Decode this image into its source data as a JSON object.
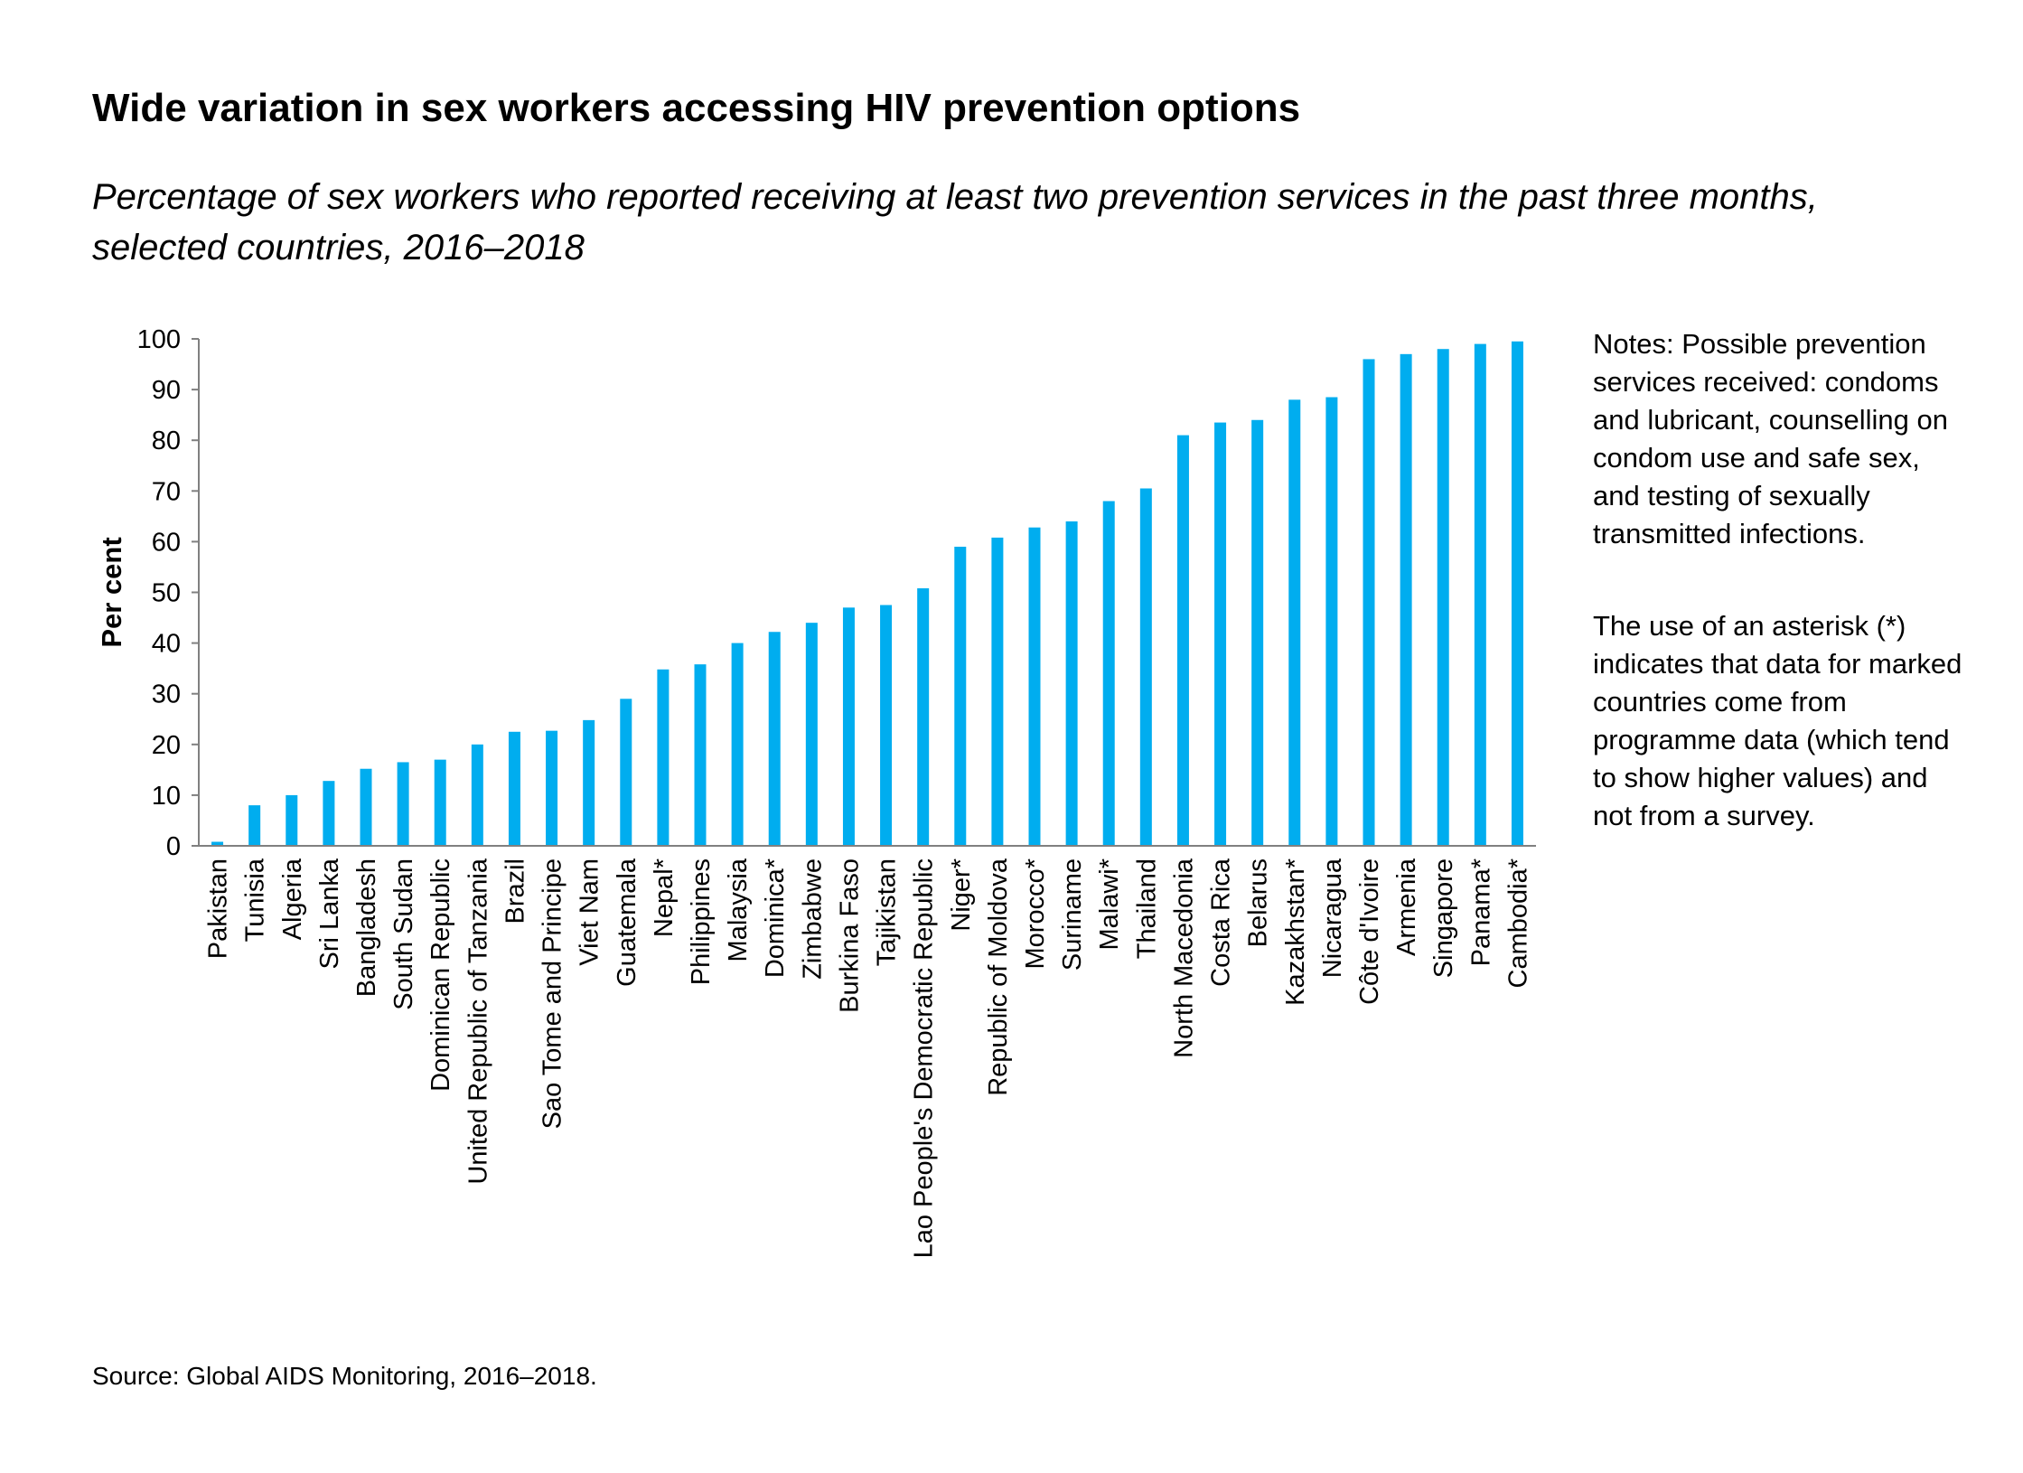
{
  "chart_data": {
    "type": "bar",
    "title": "Wide variation in sex workers accessing HIV prevention options",
    "subtitle": "Percentage of sex workers who reported receiving at least two prevention services in the past three months, selected countries, 2016–2018",
    "xlabel": "",
    "ylabel": "Per cent",
    "ylim": [
      0,
      100
    ],
    "yticks": [
      "0",
      "10",
      "20",
      "30",
      "40",
      "50",
      "60",
      "70",
      "80",
      "90",
      "100"
    ],
    "bar_color": "#00ADEF",
    "grid": false,
    "categories": [
      "Pakistan",
      "Tunisia",
      "Algeria",
      "Sri Lanka",
      "Bangladesh",
      "South Sudan",
      "Dominican Republic",
      "United Republic of Tanzania",
      "Brazil",
      "Sao Tome and Principe",
      "Viet Nam",
      "Guatemala",
      "Nepal*",
      "Philippines",
      "Malaysia",
      "Dominica*",
      "Zimbabwe",
      "Burkina Faso",
      "Tajikistan",
      "Lao People's Democratic Republic",
      "Niger*",
      "Republic of Moldova",
      "Morocco*",
      "Suriname",
      "Malawi*",
      "Thailand",
      "North Macedonia",
      "Costa Rica",
      "Belarus",
      "Kazakhstan*",
      "Nicaragua",
      "Côte d'Ivoire",
      "Armenia",
      "Singapore",
      "Panama*",
      "Cambodia*"
    ],
    "values": [
      0.8,
      8,
      10,
      12.8,
      15.2,
      16.5,
      17,
      20,
      22.5,
      22.7,
      24.8,
      29,
      34.8,
      35.8,
      40,
      42.2,
      44,
      47,
      47.5,
      50.8,
      59,
      60.8,
      62.8,
      64,
      68,
      70.5,
      81,
      83.5,
      84,
      88,
      88.5,
      96,
      97,
      98,
      99,
      99.5
    ]
  },
  "notes": [
    "Notes: Possible prevention services received: condoms and lubricant, counselling on condom use and safe sex, and testing of sexually transmitted infections.",
    "The use of an asterisk (*) indicates that data for marked countries come from programme data (which tend to show higher values) and not from a survey."
  ],
  "source": "Source: Global AIDS Monitoring, 2016–2018."
}
